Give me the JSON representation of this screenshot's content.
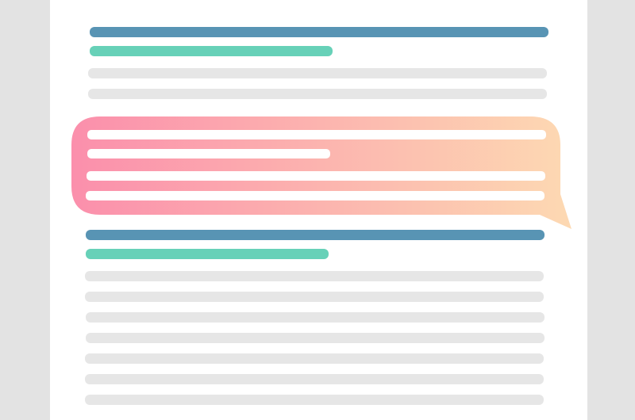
{
  "colors": {
    "background": "#e3e3e3",
    "page": "#ffffff",
    "title_bar": "#5894b4",
    "subtitle_bar": "#67d1b8",
    "text_placeholder": "#e6e6e6",
    "callout_gradient_start": "#fb8fac",
    "callout_gradient_end": "#fdd9b2",
    "callout_line": "#ffffff"
  },
  "icons": {
    "callout": "speech-bubble-icon"
  }
}
